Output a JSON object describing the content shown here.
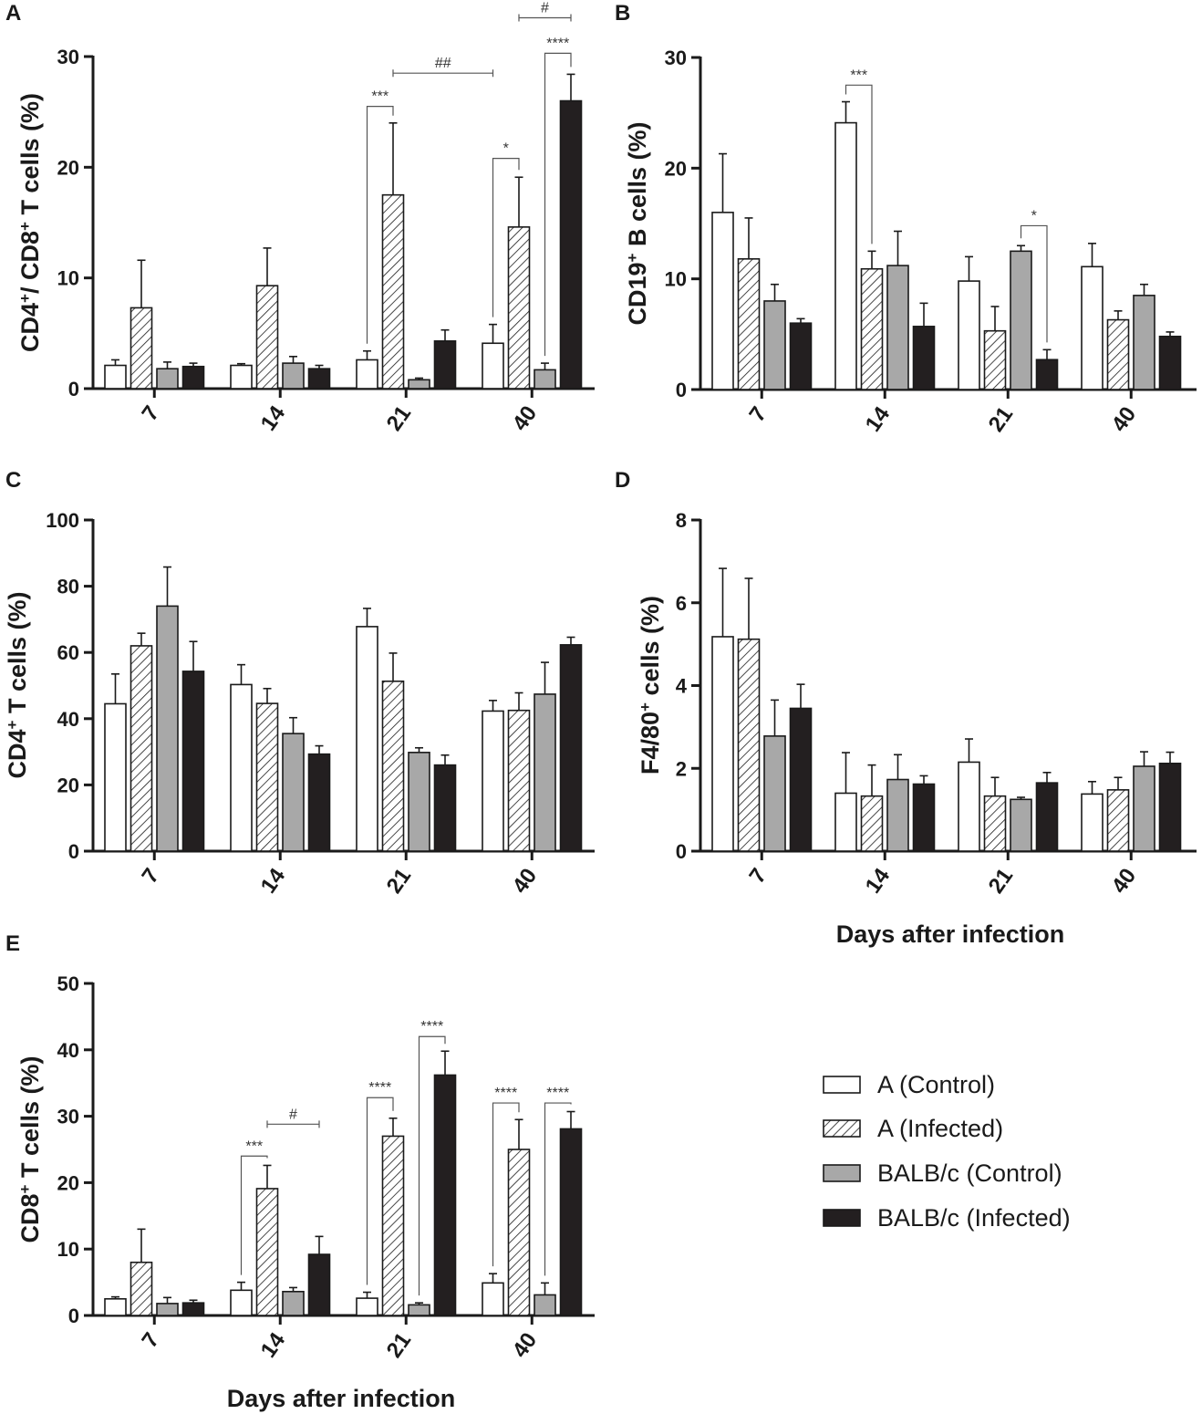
{
  "legend": {
    "entries": [
      {
        "key": "a_control",
        "label": "A (Control)"
      },
      {
        "key": "a_infected",
        "label": "A (Infected)"
      },
      {
        "key": "balb_control",
        "label": "BALB/c (Control)"
      },
      {
        "key": "balb_infected",
        "label": "BALB/c (Infected)"
      }
    ]
  },
  "series_styles": {
    "a_control": {
      "fill": "#ffffff",
      "pattern": "none"
    },
    "a_infected": {
      "fill": "#ffffff",
      "pattern": "diagonal-hatch"
    },
    "balb_control": {
      "fill": "#a8a8a8",
      "pattern": "none"
    },
    "balb_infected": {
      "fill": "#231f20",
      "pattern": "none"
    }
  },
  "shared_xlabel": "Days after infection",
  "chart_data": [
    {
      "panel": "A",
      "type": "bar",
      "ylabel": "CD4+/ CD8+ T cells (%)",
      "ylim": [
        0,
        30
      ],
      "yticks": [
        0,
        10,
        20,
        30
      ],
      "categories": [
        "7",
        "14",
        "21",
        "40"
      ],
      "series": [
        {
          "name": "A (Control)",
          "values": [
            2.1,
            2.1,
            2.6,
            4.1
          ],
          "errors": [
            0.5,
            0.15,
            0.8,
            1.7
          ]
        },
        {
          "name": "A (Infected)",
          "values": [
            7.3,
            9.3,
            17.5,
            14.6
          ],
          "errors": [
            4.3,
            3.4,
            6.5,
            4.5
          ]
        },
        {
          "name": "BALB/c (Control)",
          "values": [
            1.8,
            2.3,
            0.8,
            1.7
          ],
          "errors": [
            0.6,
            0.6,
            0.15,
            0.6
          ]
        },
        {
          "name": "BALB/c (Infected)",
          "values": [
            2.0,
            1.8,
            4.3,
            26.0
          ],
          "errors": [
            0.3,
            0.3,
            1.0,
            2.4
          ]
        }
      ],
      "annotations": [
        {
          "text": "***",
          "category": 2,
          "from": 0,
          "to": 1,
          "y": 25.5
        },
        {
          "text": "##",
          "category_from": 2,
          "series_from": 1,
          "category_to": 3,
          "series_to": 0,
          "y": 28.5,
          "style": "line"
        },
        {
          "text": "*",
          "category": 3,
          "from": 0,
          "to": 1,
          "y": 20.8
        },
        {
          "text": "****",
          "category": 3,
          "from": 2,
          "to": 3,
          "y": 30.3
        },
        {
          "text": "#",
          "category": 3,
          "from": 1,
          "to": 3,
          "y": 33.5,
          "style": "line"
        }
      ]
    },
    {
      "panel": "B",
      "type": "bar",
      "ylabel": "CD19+ B cells (%)",
      "ylim": [
        0,
        30
      ],
      "yticks": [
        0,
        10,
        20,
        30
      ],
      "categories": [
        "7",
        "14",
        "21",
        "40"
      ],
      "series": [
        {
          "name": "A (Control)",
          "values": [
            16.0,
            24.1,
            9.8,
            11.1
          ],
          "errors": [
            5.3,
            1.9,
            2.2,
            2.1
          ]
        },
        {
          "name": "A (Infected)",
          "values": [
            11.8,
            10.9,
            5.3,
            6.3
          ],
          "errors": [
            3.7,
            1.6,
            2.2,
            0.8
          ]
        },
        {
          "name": "BALB/c (Control)",
          "values": [
            8.0,
            11.2,
            12.5,
            8.5
          ],
          "errors": [
            1.5,
            3.1,
            0.5,
            1.0
          ]
        },
        {
          "name": "BALB/c (Infected)",
          "values": [
            6.0,
            5.7,
            2.7,
            4.8
          ],
          "errors": [
            0.4,
            2.1,
            0.9,
            0.4
          ]
        }
      ],
      "annotations": [
        {
          "text": "***",
          "category": 1,
          "from": 0,
          "to": 1,
          "y": 27.5
        },
        {
          "text": "*",
          "category": 2,
          "from": 2,
          "to": 3,
          "y": 14.8
        }
      ]
    },
    {
      "panel": "C",
      "type": "bar",
      "ylabel": "CD4+ T cells (%)",
      "ylim": [
        0,
        100
      ],
      "yticks": [
        0,
        20,
        40,
        60,
        80,
        100
      ],
      "categories": [
        "7",
        "14",
        "21",
        "40"
      ],
      "series": [
        {
          "name": "A (Control)",
          "values": [
            44.5,
            50.3,
            67.8,
            42.3
          ],
          "errors": [
            9.0,
            6.0,
            5.5,
            3.2
          ]
        },
        {
          "name": "A (Infected)",
          "values": [
            62.0,
            44.6,
            51.3,
            42.5
          ],
          "errors": [
            3.8,
            4.5,
            8.5,
            5.3
          ]
        },
        {
          "name": "BALB/c (Control)",
          "values": [
            74.0,
            35.5,
            29.8,
            47.4
          ],
          "errors": [
            11.8,
            4.8,
            1.4,
            9.6
          ]
        },
        {
          "name": "BALB/c (Infected)",
          "values": [
            54.3,
            29.3,
            26.0,
            62.3
          ],
          "errors": [
            9.0,
            2.5,
            3.0,
            2.3
          ]
        }
      ],
      "annotations": []
    },
    {
      "panel": "D",
      "type": "bar",
      "ylabel": "F4/80+ cells (%)",
      "xlabel": "Days after infection",
      "ylim": [
        0,
        8
      ],
      "yticks": [
        0,
        2,
        4,
        6,
        8
      ],
      "categories": [
        "7",
        "14",
        "21",
        "40"
      ],
      "series": [
        {
          "name": "A (Control)",
          "values": [
            5.18,
            1.4,
            2.15,
            1.38
          ],
          "errors": [
            1.65,
            0.98,
            0.56,
            0.3
          ]
        },
        {
          "name": "A (Infected)",
          "values": [
            5.12,
            1.33,
            1.33,
            1.48
          ],
          "errors": [
            1.47,
            0.75,
            0.45,
            0.3
          ]
        },
        {
          "name": "BALB/c (Control)",
          "values": [
            2.78,
            1.73,
            1.25,
            2.05
          ],
          "errors": [
            0.87,
            0.6,
            0.05,
            0.35
          ]
        },
        {
          "name": "BALB/c (Infected)",
          "values": [
            3.45,
            1.62,
            1.65,
            2.12
          ],
          "errors": [
            0.58,
            0.2,
            0.25,
            0.27
          ]
        }
      ],
      "annotations": []
    },
    {
      "panel": "E",
      "type": "bar",
      "ylabel": "CD8+ T cells (%)",
      "xlabel": "Days after infection",
      "ylim": [
        0,
        50
      ],
      "yticks": [
        0,
        10,
        20,
        30,
        40,
        50
      ],
      "categories": [
        "7",
        "14",
        "21",
        "40"
      ],
      "series": [
        {
          "name": "A (Control)",
          "values": [
            2.5,
            3.8,
            2.6,
            4.9
          ],
          "errors": [
            0.3,
            1.2,
            0.9,
            1.4
          ]
        },
        {
          "name": "A (Infected)",
          "values": [
            8.0,
            19.1,
            27.0,
            25.0
          ],
          "errors": [
            5.0,
            3.5,
            2.7,
            4.5
          ]
        },
        {
          "name": "BALB/c (Control)",
          "values": [
            1.8,
            3.6,
            1.6,
            3.1
          ],
          "errors": [
            0.9,
            0.6,
            0.3,
            1.8
          ]
        },
        {
          "name": "BALB/c (Infected)",
          "values": [
            1.9,
            9.2,
            36.2,
            28.1
          ],
          "errors": [
            0.4,
            2.7,
            3.6,
            2.6
          ]
        }
      ],
      "annotations": [
        {
          "text": "***",
          "category": 1,
          "from": 0,
          "to": 1,
          "y": 24.0
        },
        {
          "text": "#",
          "category_from": 1,
          "series_from": 1,
          "category_to": 1,
          "series_to": 3,
          "y": 28.8,
          "style": "line"
        },
        {
          "text": "****",
          "category": 2,
          "from": 0,
          "to": 1,
          "y": 32.8
        },
        {
          "text": "****",
          "category": 2,
          "from": 2,
          "to": 3,
          "y": 42.0
        },
        {
          "text": "****",
          "category": 3,
          "from": 0,
          "to": 1,
          "y": 32.0
        },
        {
          "text": "****",
          "category": 3,
          "from": 2,
          "to": 3,
          "y": 32.0
        }
      ]
    }
  ]
}
